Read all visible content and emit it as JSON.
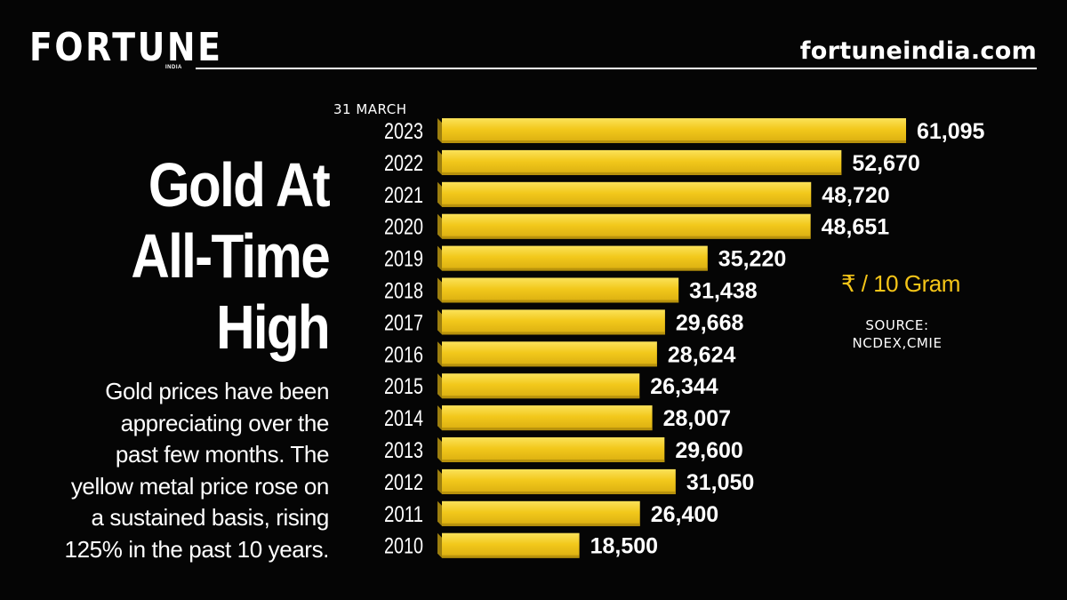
{
  "header": {
    "brand": "FORTUNE",
    "brand_sub": "INDIA",
    "site_url": "fortuneindia.com"
  },
  "title_lines": [
    "Gold At",
    "All-Time",
    "High"
  ],
  "description_lines": [
    "Gold prices have been",
    "appreciating over the",
    "past few months. The",
    "yellow metal price rose on",
    "a sustained basis, rising",
    "125% in the past 10 years."
  ],
  "unit": "₹ / 10 Gram",
  "source": {
    "label": "SOURCE:",
    "value": "NCDEX,CMIE"
  },
  "colors": {
    "bar": "#f2c81b",
    "bar_highlight": "#fbe25a",
    "bar_side": "#9c7e0e",
    "background": "#050505"
  },
  "chart_data": {
    "type": "bar",
    "orientation": "horizontal",
    "date_note": "31 MARCH",
    "categories": [
      "2023",
      "2022",
      "2021",
      "2020",
      "2019",
      "2018",
      "2017",
      "2016",
      "2015",
      "2014",
      "2013",
      "2012",
      "2011",
      "2010"
    ],
    "value_labels": [
      "61,095",
      "52,670",
      "48,720",
      "48,651",
      "35,220",
      "31,438",
      "29,668",
      "28,624",
      "26,344",
      "28,007",
      "29,600",
      "31,050",
      "26,400",
      "18,500"
    ],
    "values": [
      61095,
      52670,
      48720,
      48651,
      35220,
      31438,
      29668,
      28624,
      26344,
      28007,
      29600,
      31050,
      26400,
      18500
    ],
    "unit": "₹ / 10 Gram",
    "title": "",
    "xlabel": "",
    "ylabel": "",
    "grid": false,
    "legend": "none"
  }
}
